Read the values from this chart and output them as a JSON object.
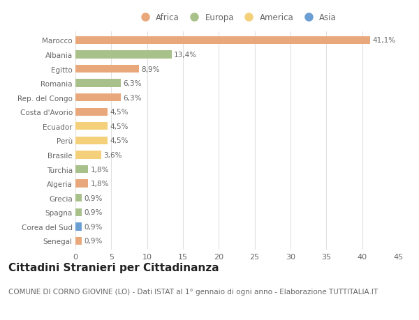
{
  "countries": [
    "Marocco",
    "Albania",
    "Egitto",
    "Romania",
    "Rep. del Congo",
    "Costa d'Avorio",
    "Ecuador",
    "Perù",
    "Brasile",
    "Turchia",
    "Algeria",
    "Grecia",
    "Spagna",
    "Corea del Sud",
    "Senegal"
  ],
  "values": [
    41.1,
    13.4,
    8.9,
    6.3,
    6.3,
    4.5,
    4.5,
    4.5,
    3.6,
    1.8,
    1.8,
    0.9,
    0.9,
    0.9,
    0.9
  ],
  "labels": [
    "41,1%",
    "13,4%",
    "8,9%",
    "6,3%",
    "6,3%",
    "4,5%",
    "4,5%",
    "4,5%",
    "3,6%",
    "1,8%",
    "1,8%",
    "0,9%",
    "0,9%",
    "0,9%",
    "0,9%"
  ],
  "continents": [
    "Africa",
    "Europa",
    "Africa",
    "Europa",
    "Africa",
    "Africa",
    "America",
    "America",
    "America",
    "Europa",
    "Africa",
    "Europa",
    "Europa",
    "Asia",
    "Africa"
  ],
  "continent_colors": {
    "Africa": "#E8A87C",
    "Europa": "#A8C08A",
    "America": "#F5D07A",
    "Asia": "#6B9FD4"
  },
  "legend_order": [
    "Africa",
    "Europa",
    "America",
    "Asia"
  ],
  "plot_bg_color": "#ffffff",
  "fig_bg_color": "#ffffff",
  "grid_color": "#e0e0e0",
  "xlim": [
    0,
    45
  ],
  "xticks": [
    0,
    5,
    10,
    15,
    20,
    25,
    30,
    35,
    40,
    45
  ],
  "title": "Cittadini Stranieri per Cittadinanza",
  "subtitle": "COMUNE DI CORNO GIOVINE (LO) - Dati ISTAT al 1° gennaio di ogni anno - Elaborazione TUTTITALIA.IT",
  "title_fontsize": 11,
  "subtitle_fontsize": 7.5,
  "label_fontsize": 7.5,
  "ytick_fontsize": 7.5,
  "xtick_fontsize": 8,
  "legend_fontsize": 8.5,
  "bar_height": 0.55
}
